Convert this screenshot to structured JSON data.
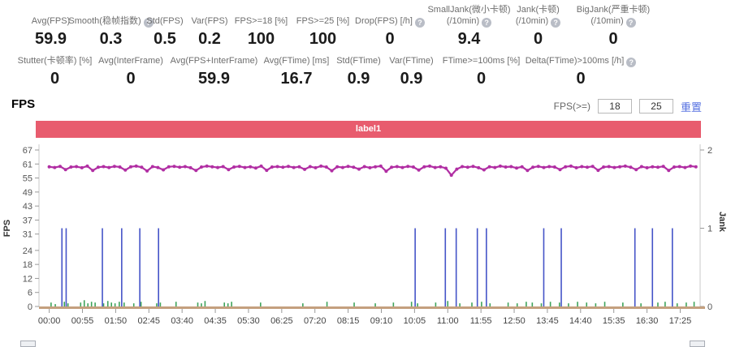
{
  "section": {
    "title": "FPS"
  },
  "fps_filter": {
    "label": "FPS(>=)",
    "min": "18",
    "max": "25",
    "reset_label": "重置"
  },
  "stats_row1": [
    {
      "lines": [
        "Avg(FPS)"
      ],
      "help": false,
      "value": "59.9"
    },
    {
      "lines": [
        "Smooth(稳帧指数)"
      ],
      "help": true,
      "value": "0.3"
    },
    {
      "lines": [
        "Std(FPS)"
      ],
      "help": false,
      "value": "0.5"
    },
    {
      "lines": [
        "Var(FPS)"
      ],
      "help": false,
      "value": "0.2"
    },
    {
      "lines": [
        "FPS>=18 [%]"
      ],
      "help": false,
      "value": "100"
    },
    {
      "lines": [
        "FPS>=25 [%]"
      ],
      "help": false,
      "value": "100"
    },
    {
      "lines": [
        "Drop(FPS) [/h]"
      ],
      "help": true,
      "value": "0"
    },
    {
      "lines": [
        "SmallJank(微小卡顿)",
        "(/10min)"
      ],
      "help": true,
      "value": "9.4"
    },
    {
      "lines": [
        "Jank(卡顿)",
        "(/10min)"
      ],
      "help": true,
      "value": "0"
    },
    {
      "lines": [
        "BigJank(严重卡顿)",
        "(/10min)"
      ],
      "help": true,
      "value": "0"
    }
  ],
  "stats_row2": [
    {
      "lines": [
        "Stutter(卡顿率) [%]"
      ],
      "help": false,
      "value": "0"
    },
    {
      "lines": [
        "Avg(InterFrame)"
      ],
      "help": false,
      "value": "0"
    },
    {
      "lines": [
        "Avg(FPS+InterFrame)"
      ],
      "help": false,
      "value": "59.9"
    },
    {
      "lines": [
        "Avg(FTime) [ms]"
      ],
      "help": false,
      "value": "16.7"
    },
    {
      "lines": [
        "Std(FTime)"
      ],
      "help": false,
      "value": "0.9"
    },
    {
      "lines": [
        "Var(FTime)"
      ],
      "help": false,
      "value": "0.9"
    },
    {
      "lines": [
        "FTime>=100ms [%]"
      ],
      "help": false,
      "value": "0"
    },
    {
      "lines": [
        "Delta(FTime)>100ms [/h]"
      ],
      "help": true,
      "value": "0"
    }
  ],
  "chart_data": {
    "type": "line",
    "title": "label1",
    "banner_color": "#e85c6e",
    "left_axis": {
      "label": "FPS",
      "max": 67,
      "ticks": [
        67,
        61,
        55,
        49,
        43,
        37,
        31,
        24,
        18,
        12,
        6,
        0
      ]
    },
    "right_axis": {
      "label": "Jank",
      "max": 2,
      "ticks": [
        2,
        1,
        0
      ]
    },
    "x_tick_labels": [
      "00:00",
      "00:55",
      "01:50",
      "02:45",
      "03:40",
      "04:35",
      "05:30",
      "06:25",
      "07:20",
      "08:15",
      "09:10",
      "10:05",
      "11:00",
      "11:55",
      "12:50",
      "13:45",
      "14:40",
      "15:35",
      "16:30",
      "17:25"
    ],
    "x_tick_interval_s": 55,
    "t_domain": [
      -17,
      1078
    ],
    "series": [
      {
        "name": "FPS",
        "axis": "left",
        "color": "#b12ea3",
        "avg": 59.9,
        "t0": 0,
        "t_step": 9,
        "values": [
          59.8,
          59.5,
          60.0,
          58.6,
          59.7,
          59.9,
          59.4,
          60.1,
          58.2,
          59.6,
          59.9,
          59.5,
          60.0,
          59.7,
          58.4,
          59.8,
          60.1,
          59.6,
          58.0,
          59.9,
          59.5,
          58.5,
          59.8,
          60.0,
          59.6,
          59.9,
          59.4,
          58.2,
          59.7,
          60.1,
          59.8,
          59.5,
          59.9,
          58.6,
          59.7,
          60.0,
          59.5,
          59.8,
          59.3,
          60.1,
          58.3,
          59.7,
          59.9,
          59.6,
          60.0,
          59.5,
          59.8,
          58.7,
          59.9,
          59.4,
          60.1,
          59.7,
          58.1,
          59.8,
          59.5,
          60.0,
          59.6,
          58.8,
          59.9,
          59.4,
          59.8,
          60.1,
          57.9,
          59.6,
          59.9,
          59.5,
          60.0,
          59.7,
          58.4,
          59.8,
          60.1,
          59.5,
          59.8,
          59.2,
          56.2,
          58.8,
          59.9,
          59.6,
          60.0,
          59.4,
          58.5,
          59.8,
          59.5,
          60.1,
          59.7,
          59.9,
          59.3,
          59.8,
          58.2,
          59.6,
          60.0,
          59.5,
          59.9,
          59.7,
          58.6,
          59.8,
          60.1,
          59.4,
          59.9,
          59.6,
          60.0,
          58.3,
          59.7,
          59.9,
          59.5,
          59.8,
          60.1,
          59.6,
          58.6,
          59.9,
          59.4,
          59.8,
          59.6,
          60.0,
          58.2,
          59.7,
          59.9,
          59.5,
          60.1,
          59.8
        ]
      },
      {
        "name": "Jank",
        "axis": "right",
        "color": "#4554c8",
        "event_value": 1,
        "times_s": [
          21,
          28,
          88,
          120,
          150,
          181,
          606,
          656,
          674,
          709,
          724,
          819,
          848,
          970,
          999,
          1032
        ]
      },
      {
        "name": "MinorEvents",
        "axis": "right",
        "color": "#3ea35a",
        "points": [
          [
            3,
            0.05
          ],
          [
            10,
            0.03
          ],
          [
            25,
            0.06
          ],
          [
            31,
            0.04
          ],
          [
            52,
            0.05
          ],
          [
            58,
            0.08
          ],
          [
            64,
            0.04
          ],
          [
            70,
            0.06
          ],
          [
            76,
            0.05
          ],
          [
            90,
            0.04
          ],
          [
            97,
            0.07
          ],
          [
            103,
            0.05
          ],
          [
            109,
            0.04
          ],
          [
            116,
            0.06
          ],
          [
            124,
            0.05
          ],
          [
            140,
            0.04
          ],
          [
            152,
            0.06
          ],
          [
            178,
            0.04
          ],
          [
            184,
            0.05
          ],
          [
            210,
            0.06
          ],
          [
            246,
            0.05
          ],
          [
            252,
            0.04
          ],
          [
            258,
            0.07
          ],
          [
            290,
            0.05
          ],
          [
            296,
            0.04
          ],
          [
            302,
            0.06
          ],
          [
            350,
            0.05
          ],
          [
            420,
            0.04
          ],
          [
            460,
            0.06
          ],
          [
            505,
            0.05
          ],
          [
            540,
            0.04
          ],
          [
            570,
            0.05
          ],
          [
            600,
            0.06
          ],
          [
            610,
            0.04
          ],
          [
            640,
            0.05
          ],
          [
            660,
            0.07
          ],
          [
            680,
            0.04
          ],
          [
            700,
            0.05
          ],
          [
            716,
            0.06
          ],
          [
            730,
            0.04
          ],
          [
            760,
            0.05
          ],
          [
            775,
            0.04
          ],
          [
            790,
            0.06
          ],
          [
            800,
            0.05
          ],
          [
            815,
            0.04
          ],
          [
            830,
            0.06
          ],
          [
            845,
            0.05
          ],
          [
            860,
            0.04
          ],
          [
            875,
            0.06
          ],
          [
            890,
            0.05
          ],
          [
            905,
            0.04
          ],
          [
            920,
            0.06
          ],
          [
            950,
            0.05
          ],
          [
            980,
            0.04
          ],
          [
            1008,
            0.05
          ],
          [
            1020,
            0.06
          ],
          [
            1040,
            0.04
          ],
          [
            1055,
            0.05
          ],
          [
            1068,
            0.06
          ]
        ]
      }
    ],
    "baseline_color": "#c4a07e"
  }
}
